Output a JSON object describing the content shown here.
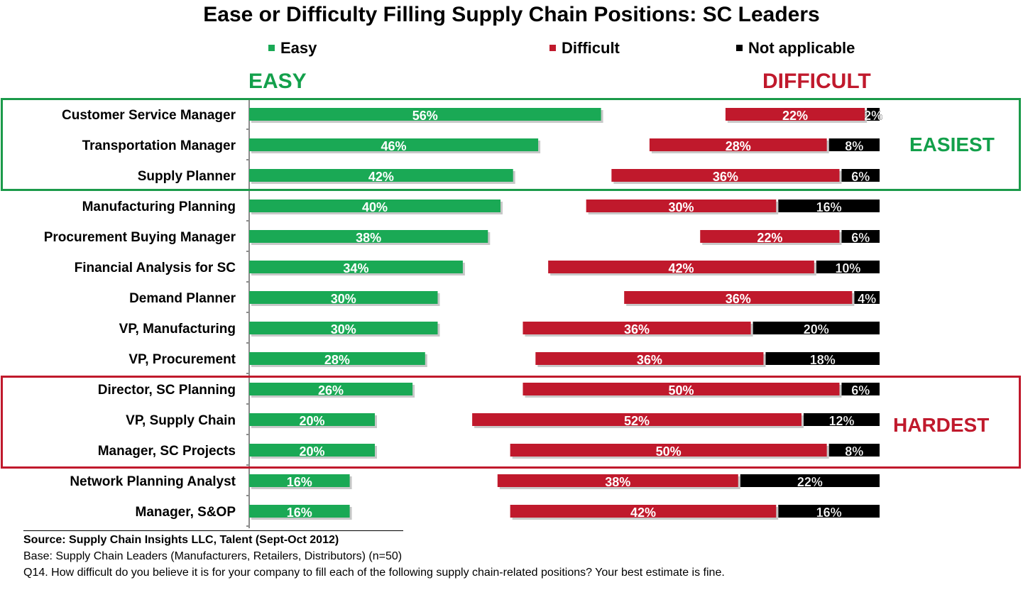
{
  "title": "Ease or Difficulty Filling Supply Chain Positions:  SC Leaders",
  "legend": [
    {
      "label": "Easy",
      "color": "#1aa955"
    },
    {
      "label": "Difficult",
      "color": "#c0192c"
    },
    {
      "label": "Not applicable",
      "color": "#000000"
    }
  ],
  "headers": {
    "easy": "EASY",
    "difficult": "DIFFICULT"
  },
  "groups": {
    "easiest": "EASIEST",
    "hardest": "HARDEST"
  },
  "colors": {
    "easy": "#1aa955",
    "difficult": "#c0192c",
    "na": "#000000",
    "easy_text": "#13a04b",
    "difficult_text": "#c0192c"
  },
  "chart_data": {
    "type": "bar",
    "orientation": "horizontal",
    "categories": [
      "Customer Service Manager",
      "Transportation Manager",
      "Supply Planner",
      "Manufacturing Planning",
      "Procurement Buying Manager",
      "Financial Analysis for SC",
      "Demand Planner",
      "VP, Manufacturing",
      "VP, Procurement",
      "Director, SC Planning",
      "VP, Supply Chain",
      "Manager, SC Projects",
      "Network Planning Analyst",
      "Manager, S&OP"
    ],
    "series": [
      {
        "name": "Easy",
        "values": [
          56,
          46,
          42,
          40,
          38,
          34,
          30,
          30,
          28,
          26,
          20,
          20,
          16,
          16
        ]
      },
      {
        "name": "Difficult",
        "values": [
          22,
          28,
          36,
          30,
          22,
          42,
          36,
          36,
          36,
          50,
          52,
          50,
          38,
          42
        ]
      },
      {
        "name": "Not applicable",
        "values": [
          2,
          8,
          6,
          16,
          6,
          10,
          4,
          20,
          18,
          6,
          12,
          8,
          22,
          16
        ]
      }
    ],
    "value_labels": {
      "easy": [
        "56%",
        "46%",
        "42%",
        "40%",
        "38%",
        "34%",
        "30%",
        "30%",
        "28%",
        "26%",
        "20%",
        "20%",
        "16%",
        "16%"
      ],
      "difficult": [
        "22%",
        "28%",
        "36%",
        "30%",
        "22%",
        "42%",
        "36%",
        "36%",
        "36%",
        "50%",
        "52%",
        "50%",
        "38%",
        "42%"
      ],
      "na": [
        "2%",
        "8%",
        "6%",
        "16%",
        "6%",
        "10%",
        "4%",
        "20%",
        "18%",
        "6%",
        "12%",
        "8%",
        "22%",
        "16%"
      ]
    },
    "unit": "%",
    "grid": false
  },
  "source": {
    "line1": "Source:  Supply Chain Insights LLC, Talent (Sept-Oct 2012)",
    "line2": "Base:  Supply Chain Leaders (Manufacturers, Retailers, Distributors) (n=50)",
    "line3": "Q14. How difficult do you believe it is for your company to fill each of the following supply chain-related positions? Your best estimate is fine."
  }
}
